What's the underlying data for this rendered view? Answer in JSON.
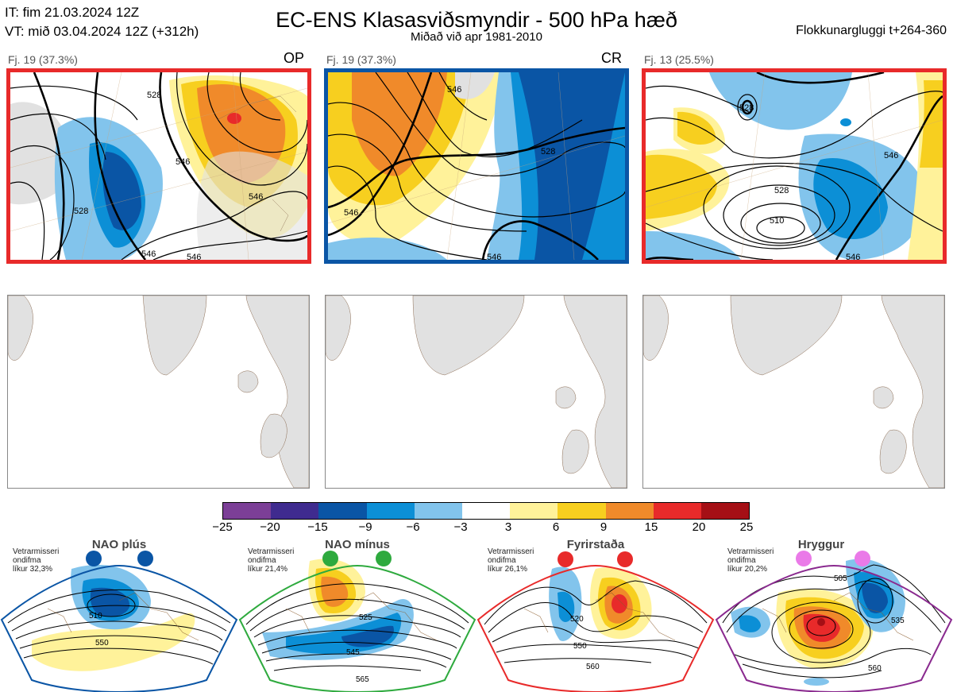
{
  "header": {
    "it_line": "IT: fim 21.03.2024 12Z",
    "vt_line": "VT: mið 03.04.2024 12Z  (+312h)",
    "title": "EC-ENS Klasasviðsmyndir - 500 hPa hæð",
    "subtitle": "Miðað við apr 1981-2010",
    "window": "Flokkunargluggi t+264-360"
  },
  "top_panels": [
    {
      "label": "Fj. 19 (37.3%)",
      "tag": "OP",
      "border": "#e82a2a"
    },
    {
      "label": "Fj. 19 (37.3%)",
      "tag": "CR",
      "border": "#0a55a5"
    },
    {
      "label": "Fj. 13 (25.5%)",
      "tag": "",
      "border": "#e82a2a"
    }
  ],
  "colorbar": {
    "labels": [
      "−25",
      "−20",
      "−15",
      "−9",
      "−6",
      "−3",
      "3",
      "6",
      "9",
      "15",
      "20",
      "25"
    ],
    "colors": [
      "#7c3f97",
      "#3f2b8f",
      "#0a55a5",
      "#0c8fd6",
      "#82c4ec",
      "#ffffff",
      "#fff29a",
      "#f7cf1f",
      "#f08a2a",
      "#e82a2a",
      "#a50f15"
    ]
  },
  "regimes": [
    {
      "name": "NAO plús",
      "note_1": "Vetrarmisseri",
      "note_2": "ondifma",
      "note_3": "líkur 32,3%",
      "color": "#0a55a5",
      "dot": "#0a55a5",
      "contours": [
        "510",
        "550"
      ]
    },
    {
      "name": "NAO mínus",
      "note_1": "Vetrarmisseri",
      "note_2": "ondifma",
      "note_3": "líkur 21,4%",
      "color": "#2eaa3e",
      "dot": "#2eaa3e",
      "contours": [
        "525",
        "545",
        "565"
      ]
    },
    {
      "name": "Fyrirstaða",
      "note_1": "Vetrarmisseri",
      "note_2": "ondifma",
      "note_3": "líkur 26,1%",
      "color": "#e82a2a",
      "dot": "#e82a2a",
      "contours": [
        "520",
        "550",
        "560"
      ]
    },
    {
      "name": "Hryggur",
      "note_1": "Vetrarmisseri",
      "note_2": "ondifma",
      "note_3": "líkur 20,2%",
      "color": "#8a2a8f",
      "dot": "#ea7ae8",
      "contours": [
        "505",
        "535",
        "560"
      ]
    }
  ],
  "panel_contour_labels": {
    "p1": [
      "528",
      "546",
      "528",
      "546",
      "546",
      "546"
    ],
    "p2": [
      "546",
      "528",
      "546",
      "546"
    ],
    "p3": [
      "528",
      "528",
      "510",
      "546",
      "546"
    ]
  }
}
